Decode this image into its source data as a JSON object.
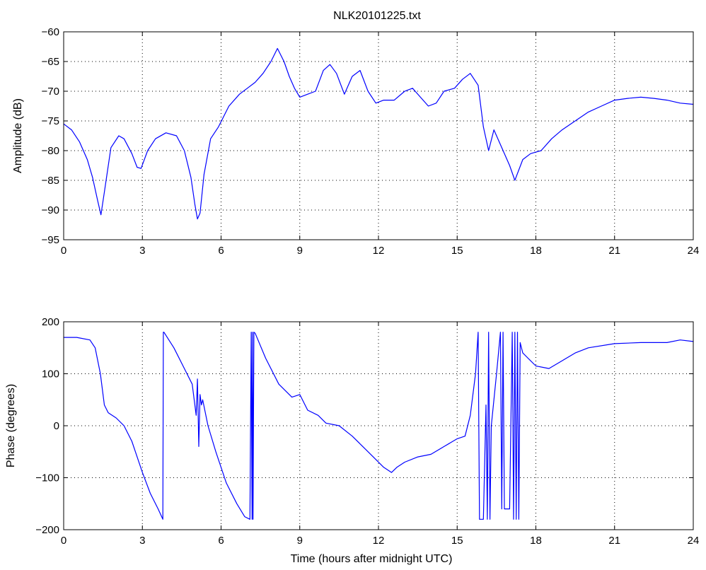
{
  "figure_title": "NLK20101225.txt",
  "colors": {
    "line": "#0000ff",
    "axes": "#000000",
    "grid": "#000000",
    "background": "#ffffff"
  },
  "chart_data": [
    {
      "type": "line",
      "title": "NLK20101225.txt",
      "xlabel": "",
      "ylabel": "Amplitude (dB)",
      "xlim": [
        0,
        24
      ],
      "ylim": [
        -95,
        -60
      ],
      "xticks": [
        0,
        3,
        6,
        9,
        12,
        15,
        18,
        21,
        24
      ],
      "yticks": [
        -95,
        -90,
        -85,
        -80,
        -75,
        -70,
        -65,
        -60
      ],
      "xtick_labels": [
        "0",
        "3",
        "6",
        "9",
        "12",
        "15",
        "18",
        "21",
        "24"
      ],
      "ytick_labels": [
        "−95",
        "−90",
        "−85",
        "−80",
        "−75",
        "−70",
        "−65",
        "−60"
      ],
      "grid": true,
      "series": [
        {
          "x": [
            0,
            0.3,
            0.6,
            0.9,
            1.1,
            1.3,
            1.42,
            1.55,
            1.8,
            2.1,
            2.3,
            2.6,
            2.8,
            2.95,
            3.2,
            3.5,
            3.9,
            4.3,
            4.6,
            4.85,
            5.0,
            5.1,
            5.2,
            5.35,
            5.6,
            5.9,
            6.3,
            6.7,
            7.0,
            7.3,
            7.6,
            7.9,
            8.15,
            8.4,
            8.6,
            8.8,
            9.0,
            9.3,
            9.6,
            9.9,
            10.15,
            10.4,
            10.7,
            11.0,
            11.3,
            11.6,
            11.9,
            12.2,
            12.6,
            13.0,
            13.3,
            13.6,
            13.9,
            14.2,
            14.5,
            14.9,
            15.2,
            15.5,
            15.8,
            16.0,
            16.2,
            16.4,
            16.7,
            17.0,
            17.2,
            17.5,
            17.8,
            18.2,
            18.6,
            19.0,
            19.5,
            20.0,
            20.5,
            21.0,
            21.5,
            22.0,
            22.5,
            23.0,
            23.5,
            24.0
          ],
          "values": [
            -75.5,
            -76.5,
            -78.5,
            -81.5,
            -84.5,
            -88.5,
            -90.8,
            -87.0,
            -79.5,
            -77.5,
            -78.0,
            -80.5,
            -82.8,
            -83.0,
            -80.0,
            -78.0,
            -77.0,
            -77.5,
            -80.0,
            -84.5,
            -89.0,
            -91.5,
            -90.5,
            -84.0,
            -78.0,
            -76.0,
            -72.5,
            -70.5,
            -69.5,
            -68.5,
            -67.0,
            -65.0,
            -62.8,
            -65.0,
            -67.5,
            -69.5,
            -71.0,
            -70.5,
            -70.0,
            -66.5,
            -65.5,
            -67.0,
            -70.5,
            -67.5,
            -66.5,
            -70.0,
            -72.0,
            -71.5,
            -71.5,
            -70.0,
            -69.5,
            -71.0,
            -72.5,
            -72.0,
            -70.0,
            -69.5,
            -68.0,
            -67.0,
            -69.0,
            -76.0,
            -80.0,
            -76.5,
            -79.5,
            -82.5,
            -85.0,
            -81.5,
            -80.5,
            -80.0,
            -78.0,
            -76.5,
            -75.0,
            -73.5,
            -72.5,
            -71.5,
            -71.2,
            -71.0,
            -71.2,
            -71.5,
            -72.0,
            -72.2
          ]
        }
      ]
    },
    {
      "type": "line",
      "title": "",
      "xlabel": "Time (hours after midnight UTC)",
      "ylabel": "Phase (degrees)",
      "xlim": [
        0,
        24
      ],
      "ylim": [
        -200,
        200
      ],
      "xticks": [
        0,
        3,
        6,
        9,
        12,
        15,
        18,
        21,
        24
      ],
      "yticks": [
        -200,
        -100,
        0,
        100,
        200
      ],
      "xtick_labels": [
        "0",
        "3",
        "6",
        "9",
        "12",
        "15",
        "18",
        "21",
        "24"
      ],
      "ytick_labels": [
        "−200",
        "−100",
        "0",
        "100",
        "200"
      ],
      "grid": true,
      "series": [
        {
          "x": [
            0,
            0.5,
            1.0,
            1.2,
            1.4,
            1.55,
            1.7,
            2.0,
            2.3,
            2.6,
            3.0,
            3.3,
            3.6,
            3.78,
            3.8,
            3.82,
            4.2,
            4.6,
            4.9,
            5.05,
            5.1,
            5.15,
            5.2,
            5.25,
            5.3,
            5.5,
            5.8,
            6.2,
            6.6,
            6.9,
            7.1,
            7.15,
            7.18,
            7.2,
            7.22,
            7.25,
            7.3,
            7.7,
            8.2,
            8.7,
            9.0,
            9.3,
            9.7,
            10.0,
            10.5,
            11.0,
            11.4,
            11.8,
            12.2,
            12.5,
            12.7,
            13.0,
            13.5,
            14.0,
            14.5,
            15.0,
            15.3,
            15.5,
            15.7,
            15.8,
            15.85,
            16.0,
            16.1,
            16.15,
            16.2,
            16.25,
            16.3,
            16.5,
            16.65,
            16.7,
            16.75,
            16.8,
            17.0,
            17.1,
            17.15,
            17.2,
            17.25,
            17.3,
            17.35,
            17.4,
            17.5,
            17.7,
            18.0,
            18.5,
            19.0,
            19.5,
            20.0,
            21.0,
            22.0,
            23.0,
            23.5,
            24.0
          ],
          "values": [
            170,
            170,
            165,
            150,
            100,
            40,
            25,
            15,
            0,
            -30,
            -90,
            -130,
            -160,
            -180,
            180,
            180,
            150,
            110,
            80,
            20,
            90,
            -40,
            60,
            40,
            50,
            0,
            -50,
            -110,
            -150,
            -175,
            -180,
            180,
            -180,
            180,
            -180,
            180,
            178,
            130,
            80,
            55,
            60,
            30,
            20,
            5,
            0,
            -20,
            -40,
            -60,
            -80,
            -90,
            -80,
            -70,
            -60,
            -55,
            -40,
            -25,
            -20,
            20,
            100,
            180,
            -180,
            -180,
            40,
            -180,
            180,
            -180,
            0,
            100,
            180,
            -160,
            180,
            -160,
            -160,
            180,
            -180,
            180,
            -180,
            180,
            -180,
            160,
            140,
            130,
            115,
            110,
            125,
            140,
            150,
            158,
            160,
            160,
            165,
            162
          ]
        }
      ]
    }
  ]
}
